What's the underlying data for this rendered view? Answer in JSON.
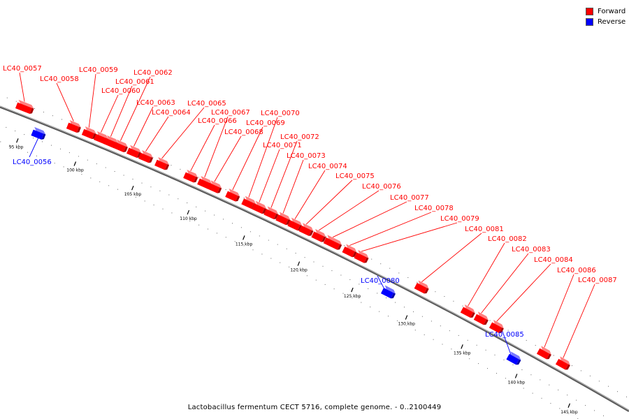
{
  "title": "Lactobacillus fermentum CECT 5716, complete genome. - 0..2100449",
  "legend": [
    {
      "label": "Forward",
      "color": "#ff0000"
    },
    {
      "label": "Reverse",
      "color": "#0000ff"
    }
  ],
  "colors": {
    "forward": "#ff0000",
    "reverse": "#0000ff",
    "backbone": "#777777"
  },
  "tick_labels": [
    "95 kbp",
    "100 kbp",
    "105 kbp",
    "110 kbp",
    "115 kbp",
    "120 kbp",
    "125 kbp",
    "130 kbp",
    "135 kbp",
    "140 kbp",
    "145 kbp"
  ],
  "genes": [
    {
      "name": "LC40_0056",
      "strand": "reverse"
    },
    {
      "name": "LC40_0057",
      "strand": "forward"
    },
    {
      "name": "LC40_0058",
      "strand": "forward"
    },
    {
      "name": "LC40_0059",
      "strand": "forward"
    },
    {
      "name": "LC40_0060",
      "strand": "forward"
    },
    {
      "name": "LC40_0061",
      "strand": "forward"
    },
    {
      "name": "LC40_0062",
      "strand": "forward"
    },
    {
      "name": "LC40_0063",
      "strand": "forward"
    },
    {
      "name": "LC40_0064",
      "strand": "forward"
    },
    {
      "name": "LC40_0065",
      "strand": "forward"
    },
    {
      "name": "LC40_0066",
      "strand": "forward"
    },
    {
      "name": "LC40_0067",
      "strand": "forward"
    },
    {
      "name": "LC40_0068",
      "strand": "forward"
    },
    {
      "name": "LC40_0069",
      "strand": "forward"
    },
    {
      "name": "LC40_0070",
      "strand": "forward"
    },
    {
      "name": "LC40_0071",
      "strand": "forward"
    },
    {
      "name": "LC40_0072",
      "strand": "forward"
    },
    {
      "name": "LC40_0073",
      "strand": "forward"
    },
    {
      "name": "LC40_0074",
      "strand": "forward"
    },
    {
      "name": "LC40_0075",
      "strand": "forward"
    },
    {
      "name": "LC40_0076",
      "strand": "forward"
    },
    {
      "name": "LC40_0077",
      "strand": "forward"
    },
    {
      "name": "LC40_0078",
      "strand": "forward"
    },
    {
      "name": "LC40_0079",
      "strand": "forward"
    },
    {
      "name": "LC40_0080",
      "strand": "reverse"
    },
    {
      "name": "LC40_0081",
      "strand": "forward"
    },
    {
      "name": "LC40_0082",
      "strand": "forward"
    },
    {
      "name": "LC40_0083",
      "strand": "forward"
    },
    {
      "name": "LC40_0084",
      "strand": "forward"
    },
    {
      "name": "LC40_0085",
      "strand": "reverse"
    },
    {
      "name": "LC40_0086",
      "strand": "forward"
    },
    {
      "name": "LC40_0087",
      "strand": "forward"
    }
  ]
}
